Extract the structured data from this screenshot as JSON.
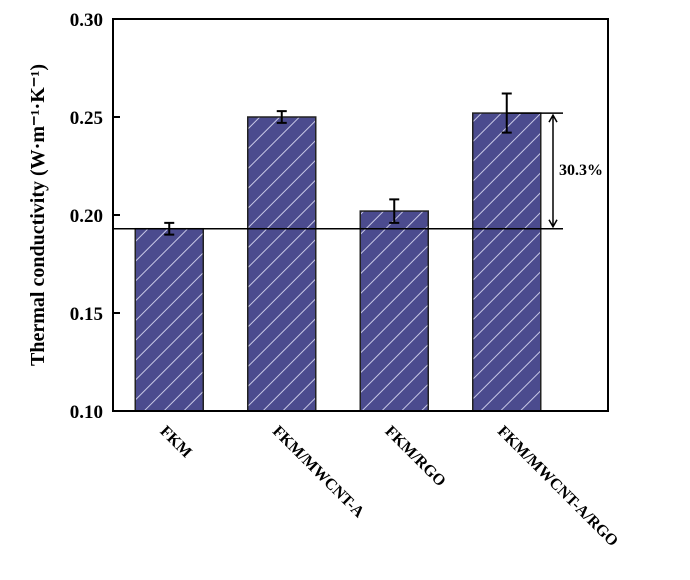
{
  "chart_data": {
    "type": "bar",
    "categories": [
      "FKM",
      "FKM/MWCNT-A",
      "FKM/RGO",
      "FKM/MWCNT-A/RGO"
    ],
    "values": [
      0.193,
      0.25,
      0.202,
      0.252
    ],
    "errors": [
      0.003,
      0.003,
      0.006,
      0.01
    ],
    "color": "#4b4b8e",
    "ylabel": "Thermal conductivity (W·m⁻¹·K⁻¹)",
    "ylim": [
      0.1,
      0.3
    ],
    "yticks": [
      {
        "value": 0.1,
        "label": "0.10"
      },
      {
        "value": 0.15,
        "label": "0.15"
      },
      {
        "value": 0.2,
        "label": "0.20"
      },
      {
        "value": 0.25,
        "label": "0.25"
      },
      {
        "value": 0.3,
        "label": "0.30"
      }
    ],
    "annotation": "30.3%"
  }
}
